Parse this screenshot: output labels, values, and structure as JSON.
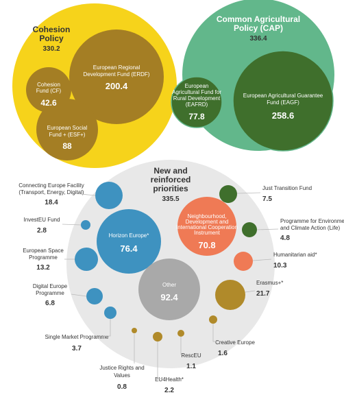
{
  "chart_data": {
    "type": "bubble",
    "groups": [
      {
        "id": "cohesion",
        "name": "Cohesion Policy",
        "name_lines": [
          "Cohesion",
          "Policy"
        ],
        "value": "330.2",
        "color": "#f6d31b",
        "items": [
          {
            "name_lines": [
              "European Regional",
              "Development Fund (ERDF)"
            ],
            "value": "200.4",
            "color": "#a47e24"
          },
          {
            "name_lines": [
              "Cohesion",
              "Fund (CF)"
            ],
            "value": "42.6",
            "color": "#a47e24"
          },
          {
            "name_lines": [
              "European Social",
              "Fund + (ESF+)"
            ],
            "value": "88",
            "color": "#a47e24"
          }
        ]
      },
      {
        "id": "cap",
        "name": "Common Agricultural Policy (CAP)",
        "name_lines": [
          "Common Agricultural",
          "Policy (CAP)"
        ],
        "value": "336.4",
        "color": "#62b78b",
        "items": [
          {
            "name_lines": [
              "European",
              "Agricultural Fund for",
              "Rural Development",
              "(EAFRD)"
            ],
            "value": "77.8",
            "color": "#3f6f2c"
          },
          {
            "name_lines": [
              "European Agricultural Guarantee",
              "Fund (EAGF)"
            ],
            "value": "258.6",
            "color": "#3f6f2c"
          }
        ]
      },
      {
        "id": "priorities",
        "name": "New and reinforced priorities",
        "name_lines": [
          "New and",
          "reinforced",
          "priorities"
        ],
        "value": "335.5",
        "color": "#e8e8e8",
        "items": [
          {
            "name_lines": [
              "Horizon Europe*"
            ],
            "value": "76.4",
            "color": "#3e92c0"
          },
          {
            "name_lines": [
              "Neighbourhood,",
              "Development and",
              "International Cooperation",
              "Instrument"
            ],
            "value": "70.8",
            "color": "#ef7a55"
          },
          {
            "name_lines": [
              "Other"
            ],
            "value": "92.4",
            "color": "#a9a9a9"
          },
          {
            "name_lines": [
              "Connecting Europe Facility",
              "(Transport, Energy, Digital)"
            ],
            "value": "18.4",
            "color": "#3e92c0"
          },
          {
            "name_lines": [
              "InvestEU Fund"
            ],
            "value": "2.8",
            "color": "#3e92c0"
          },
          {
            "name_lines": [
              "European Space",
              "Programme"
            ],
            "value": "13.2",
            "color": "#3e92c0"
          },
          {
            "name_lines": [
              "Digital Europe",
              "Programme"
            ],
            "value": "6.8",
            "color": "#3e92c0"
          },
          {
            "name_lines": [
              "Single Market Programme"
            ],
            "value": "3.7",
            "color": "#3e92c0"
          },
          {
            "name_lines": [
              "Justice Rights and",
              "Values"
            ],
            "value": "0.8",
            "color": "#b08a2a"
          },
          {
            "name_lines": [
              "EU4Health*"
            ],
            "value": "2.2",
            "color": "#b08a2a"
          },
          {
            "name_lines": [
              "RescEU"
            ],
            "value": "1.1",
            "color": "#b08a2a"
          },
          {
            "name_lines": [
              "Creative Europe"
            ],
            "value": "1.6",
            "color": "#b08a2a"
          },
          {
            "name_lines": [
              "Erasmus+*"
            ],
            "value": "21.7",
            "color": "#b08a2a"
          },
          {
            "name_lines": [
              "Humanitarian aid*"
            ],
            "value": "10.3",
            "color": "#ef7a55"
          },
          {
            "name_lines": [
              "Programme for Environment",
              "and Climate Action (Life)"
            ],
            "value": "4.8",
            "color": "#3f6f2c"
          },
          {
            "name_lines": [
              "Just Transition Fund"
            ],
            "value": "7.5",
            "color": "#3f6f2c"
          }
        ]
      }
    ]
  }
}
